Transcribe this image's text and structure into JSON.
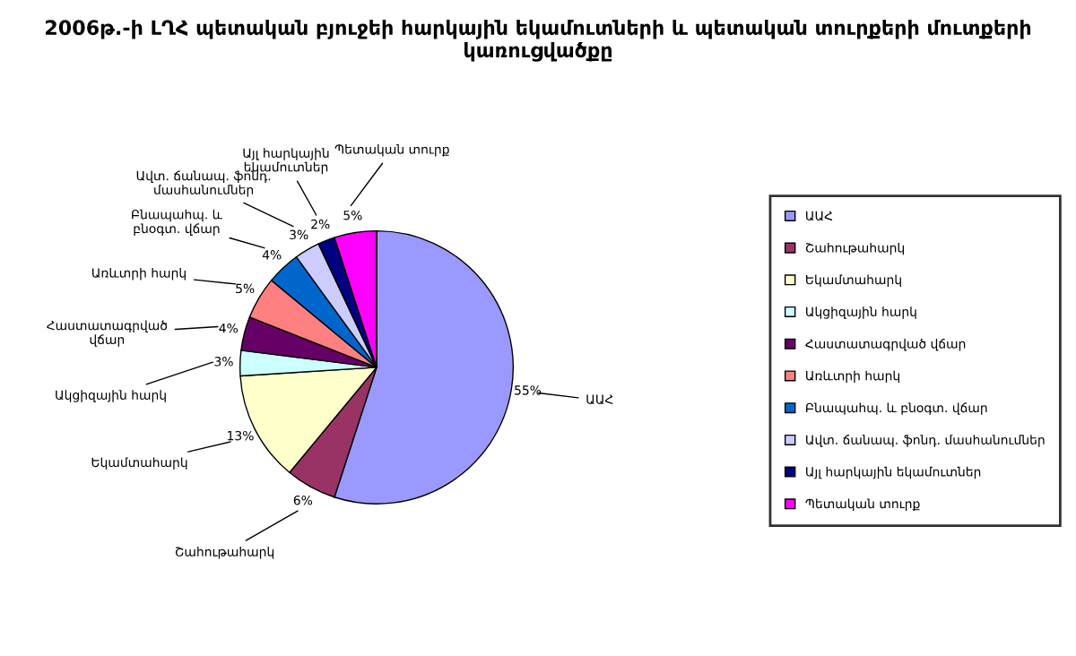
{
  "chart_data": {
    "type": "pie",
    "title": "2006թ.-ի ԼՂՀ պետական բյուջեի հարկային եկամուտների և պետական տուրքերի մուտքերի կառուցվածքը",
    "categories": [
      "ԱԱՀ",
      "Շահութահարկ",
      "Եկամտահարկ",
      "Ակցիզային հարկ",
      "Հաստատագրված վճար",
      "Առևտրի հարկ",
      "Բնապահպ. և բնօգտ. վճար",
      "Ավտ. ճանապ. ֆոնդ. մասհանումներ",
      "Այլ հարկային եկամուտներ",
      "Պետական տուրք"
    ],
    "values": [
      55,
      6,
      13,
      3,
      4,
      5,
      4,
      3,
      2,
      5
    ],
    "value_labels": [
      "55%",
      "6%",
      "13%",
      "3%",
      "4%",
      "5%",
      "4%",
      "3%",
      "2%",
      "5%"
    ],
    "colors": [
      "#9999ff",
      "#993366",
      "#ffffcc",
      "#ccffff",
      "#660066",
      "#ff8080",
      "#0066cc",
      "#ccccff",
      "#000080",
      "#ff00ff"
    ],
    "legend": "right"
  }
}
